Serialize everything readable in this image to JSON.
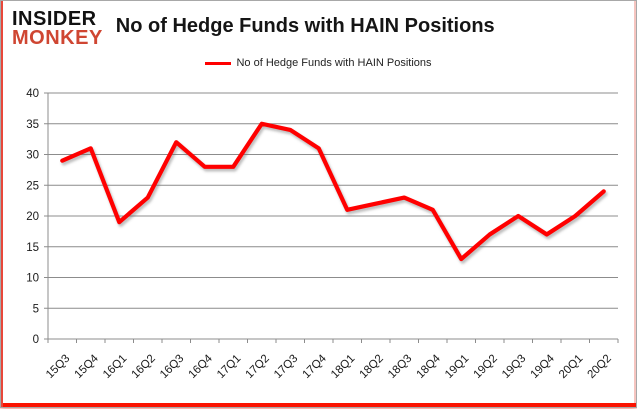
{
  "brand": {
    "line1": "INSIDER",
    "line2": "MONKEY",
    "line2_color": "#cf4632"
  },
  "title": "No of Hedge Funds with HAIN Positions",
  "legend": {
    "label": "No of Hedge Funds with HAIN Positions",
    "color": "#ff0000"
  },
  "chart_data": {
    "type": "line",
    "title": "No of Hedge Funds with HAIN Positions",
    "categories": [
      "15Q3",
      "15Q4",
      "16Q1",
      "16Q2",
      "16Q3",
      "16Q4",
      "17Q1",
      "17Q2",
      "17Q3",
      "17Q4",
      "18Q1",
      "18Q2",
      "18Q3",
      "18Q4",
      "19Q1",
      "19Q2",
      "19Q3",
      "19Q4",
      "20Q1",
      "20Q2"
    ],
    "series": [
      {
        "name": "No of Hedge Funds with HAIN Positions",
        "color": "#ff0000",
        "values": [
          29,
          31,
          19,
          23,
          32,
          28,
          28,
          35,
          34,
          31,
          21,
          22,
          23,
          21,
          13,
          17,
          20,
          17,
          20,
          24
        ]
      }
    ],
    "xlabel": "",
    "ylabel": "",
    "ylim": [
      0,
      40
    ],
    "yticks": [
      0,
      5,
      10,
      15,
      20,
      25,
      30,
      35,
      40
    ],
    "grid": true,
    "grid_color": "#8c8c8c",
    "axis_color": "#8c8c8c",
    "tick_label_color": "#1a1a1a",
    "legend_position": "top-center"
  }
}
